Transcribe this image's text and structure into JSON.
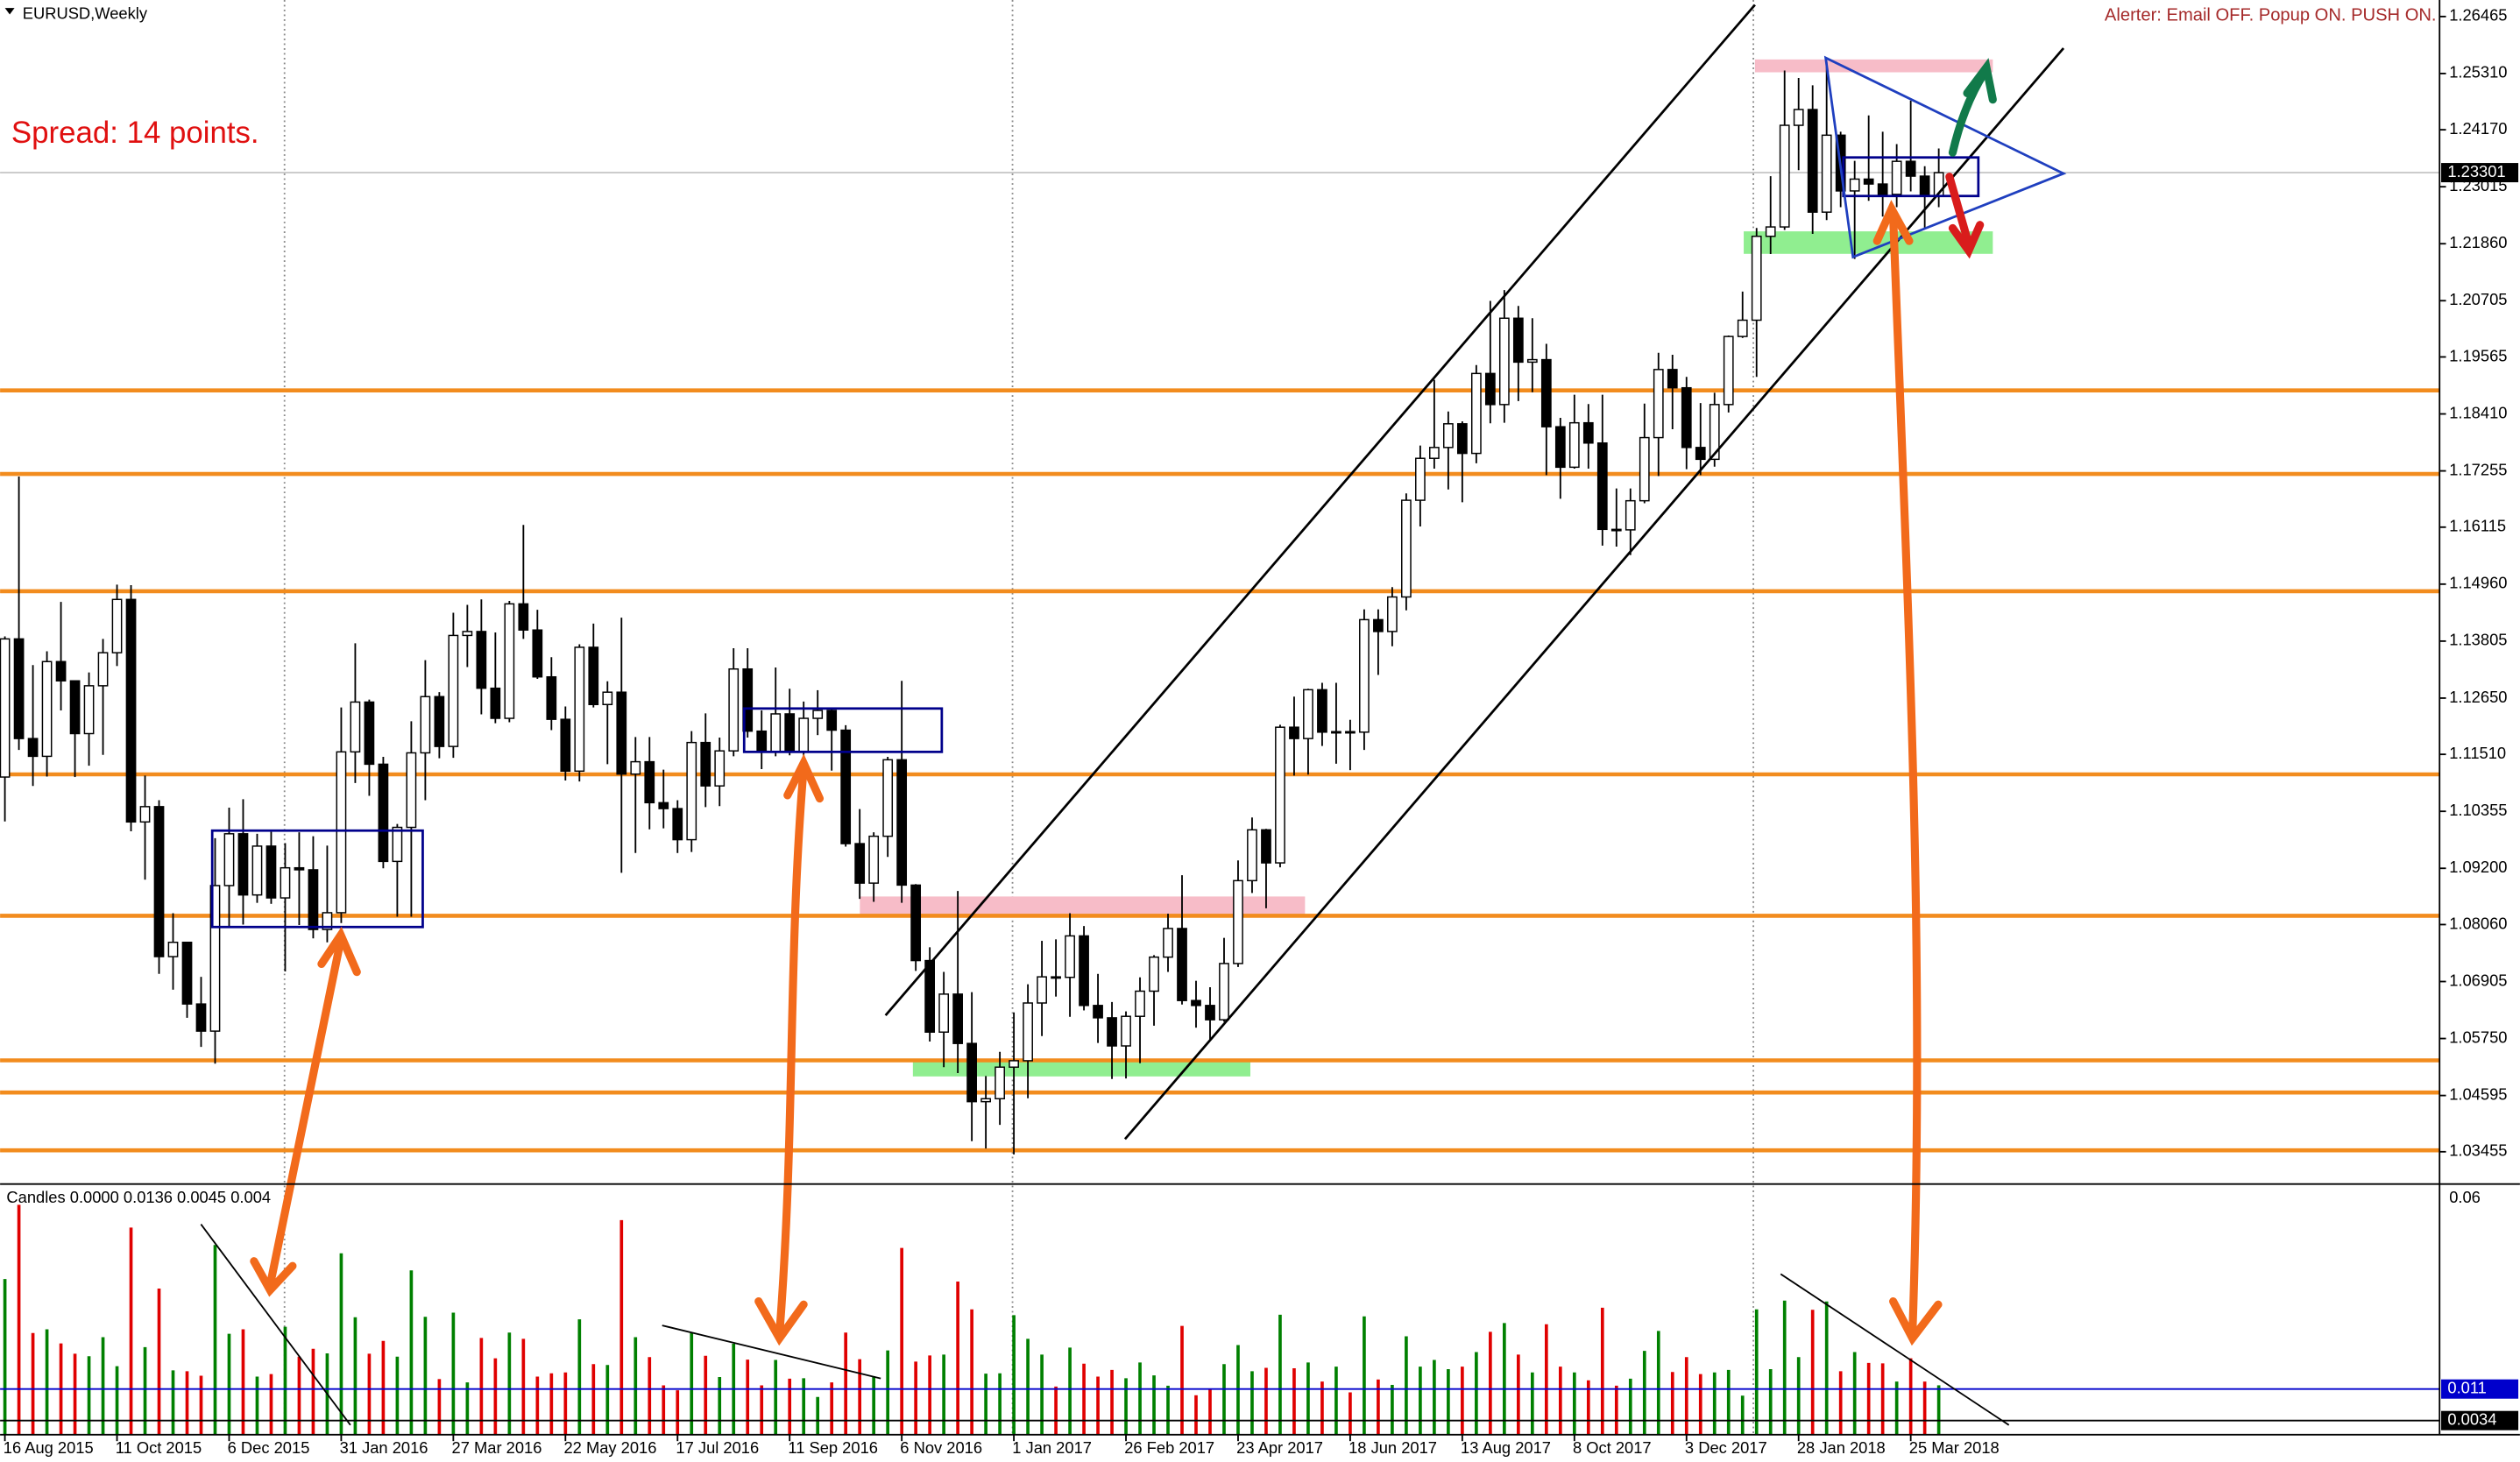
{
  "chart_data": {
    "type": "candlestick",
    "title": "EURUSD,Weekly",
    "alert_text": "Alerter:  Email OFF.  Popup ON.  PUSH ON.",
    "spread_text": "Spread: 14 points.",
    "categories": [
      "16 Aug 2015",
      null,
      null,
      null,
      null,
      null,
      null,
      null,
      "11 Oct 2015",
      null,
      null,
      null,
      null,
      null,
      null,
      null,
      "6 Dec 2015",
      null,
      null,
      null,
      null,
      null,
      null,
      null,
      "31 Jan 2016",
      null,
      null,
      null,
      null,
      null,
      null,
      null,
      "27 Mar 2016",
      null,
      null,
      null,
      null,
      null,
      null,
      null,
      "22 May 2016",
      null,
      null,
      null,
      null,
      null,
      null,
      null,
      "17 Jul 2016",
      null,
      null,
      null,
      null,
      null,
      null,
      null,
      "11 Sep 2016",
      null,
      null,
      null,
      null,
      null,
      null,
      null,
      "6 Nov 2016",
      null,
      null,
      null,
      null,
      null,
      null,
      null,
      "1 Jan 2017",
      null,
      null,
      null,
      null,
      null,
      null,
      null,
      "26 Feb 2017",
      null,
      null,
      null,
      null,
      null,
      null,
      null,
      "23 Apr 2017",
      null,
      null,
      null,
      null,
      null,
      null,
      null,
      "18 Jun 2017",
      null,
      null,
      null,
      null,
      null,
      null,
      null,
      "13 Aug 2017",
      null,
      null,
      null,
      null,
      null,
      null,
      null,
      "8 Oct 2017",
      null,
      null,
      null,
      null,
      null,
      null,
      null,
      "3 Dec 2017",
      null,
      null,
      null,
      null,
      null,
      null,
      null,
      "28 Jan 2018",
      null,
      null,
      null,
      null,
      null,
      null,
      null,
      "25 Mar 2018",
      null,
      null
    ],
    "open": [
      1.1105,
      1.1385,
      1.1183,
      1.1147,
      1.1339,
      1.13,
      1.1193,
      1.129,
      1.1357,
      1.1465,
      1.1014,
      1.1045,
      1.0741,
      1.077,
      1.0645,
      1.059,
      1.0885,
      1.099,
      1.0866,
      1.0965,
      1.086,
      1.0921,
      1.0917,
      1.0796,
      1.083,
      1.1156,
      1.1257,
      1.1131,
      1.0934,
      1.1003,
      1.1154,
      1.1268,
      1.1167,
      1.1392,
      1.14,
      1.1285,
      1.1224,
      1.1456,
      1.1403,
      1.1308,
      1.1222,
      1.1117,
      1.1368,
      1.1252,
      1.1277,
      1.1111,
      1.1136,
      1.1053,
      1.1041,
      1.0978,
      1.1175,
      1.1087,
      1.1158,
      1.1324,
      1.1198,
      1.1156,
      1.1233,
      1.1156,
      1.1224,
      1.124,
      1.12,
      1.097,
      1.089,
      1.0985,
      1.114,
      1.0886,
      1.0733,
      1.0588,
      1.0665,
      1.0565,
      1.0447,
      1.0453,
      1.0517,
      1.053,
      1.0647,
      1.07,
      1.0699,
      1.0783,
      1.0642,
      1.0617,
      1.056,
      1.062,
      1.0671,
      1.074,
      1.0798,
      1.0652,
      1.0642,
      1.0613,
      1.0727,
      1.0895,
      1.0998,
      1.0931,
      1.1206,
      1.1183,
      1.1282,
      1.1196,
      1.1197,
      1.1196,
      1.1424,
      1.14,
      1.147,
      1.1666,
      1.1751,
      1.1773,
      1.1821,
      1.1761,
      1.1923,
      1.186,
      1.2035,
      1.1946,
      1.1951,
      1.1815,
      1.1733,
      1.1823,
      1.1782,
      1.1607,
      1.1606,
      1.1665,
      1.1793,
      1.1931,
      1.1894,
      1.1773,
      1.1749,
      1.186,
      1.1998,
      1.2031,
      1.2201,
      1.222,
      1.2426,
      1.2458,
      1.225,
      1.2406,
      1.2293,
      1.2317,
      1.2307,
      1.2286,
      1.2353,
      1.2323,
      1.2282
    ],
    "high": [
      1.139,
      1.1714,
      1.1332,
      1.136,
      1.146,
      1.13,
      1.1317,
      1.1385,
      1.1495,
      1.1494,
      1.1108,
      1.1058,
      1.0829,
      1.077,
      1.07,
      1.0981,
      1.1043,
      1.106,
      1.099,
      1.0994,
      1.0971,
      1.0993,
      1.0985,
      1.0966,
      1.1246,
      1.1376,
      1.1262,
      1.1146,
      1.101,
      1.1218,
      1.1342,
      1.1277,
      1.1438,
      1.1454,
      1.1465,
      1.1398,
      1.1462,
      1.1616,
      1.1444,
      1.1348,
      1.1248,
      1.1374,
      1.1416,
      1.1299,
      1.1428,
      1.1186,
      1.1186,
      1.112,
      1.1058,
      1.1198,
      1.1234,
      1.1185,
      1.1366,
      1.1366,
      1.124,
      1.1327,
      1.1284,
      1.1258,
      1.1281,
      1.1244,
      1.121,
      1.104,
      1.0993,
      1.1146,
      1.13,
      1.0888,
      1.076,
      1.071,
      1.0874,
      1.0669,
      1.0499,
      1.0548,
      1.0628,
      1.0685,
      1.0773,
      1.0776,
      1.0829,
      1.0803,
      1.0706,
      1.0649,
      1.063,
      1.0699,
      1.0744,
      1.0828,
      1.0906,
      1.0692,
      1.0679,
      1.0779,
      1.0936,
      1.1023,
      1.1,
      1.1211,
      1.1268,
      1.1284,
      1.1296,
      1.1296,
      1.1221,
      1.1445,
      1.1445,
      1.149,
      1.168,
      1.1777,
      1.191,
      1.1846,
      1.1826,
      1.194,
      1.207,
      1.2092,
      1.206,
      1.2035,
      1.1983,
      1.1833,
      1.188,
      1.1861,
      1.188,
      1.169,
      1.169,
      1.1862,
      1.1965,
      1.1961,
      1.1916,
      1.1863,
      1.1884,
      1.2,
      1.2089,
      1.2218,
      1.2323,
      1.2537,
      1.2522,
      1.2507,
      1.2555,
      1.2413,
      1.2354,
      1.2446,
      1.2413,
      1.2388,
      1.2476,
      1.2343,
      1.2379
    ],
    "low": [
      1.1015,
      1.116,
      1.1087,
      1.1106,
      1.124,
      1.1105,
      1.1128,
      1.115,
      1.133,
      1.0995,
      1.0897,
      1.0706,
      1.0674,
      1.0617,
      1.0558,
      1.0524,
      1.08,
      1.0806,
      1.085,
      1.0848,
      1.0711,
      1.0805,
      1.0778,
      1.077,
      1.0809,
      1.1093,
      1.1067,
      1.092,
      1.0822,
      1.0822,
      1.1058,
      1.1143,
      1.1144,
      1.1328,
      1.1232,
      1.1214,
      1.1216,
      1.1385,
      1.1304,
      1.12,
      1.1098,
      1.1096,
      1.1246,
      1.1131,
      1.0911,
      1.0951,
      1.0999,
      1.1001,
      1.0951,
      1.0953,
      1.1044,
      1.1046,
      1.1147,
      1.1185,
      1.1121,
      1.1147,
      1.1149,
      1.1122,
      1.119,
      1.1118,
      1.0964,
      1.0858,
      1.0852,
      1.0943,
      1.085,
      1.0712,
      1.0569,
      1.0517,
      1.0505,
      1.0367,
      1.0352,
      1.04,
      1.034,
      1.0454,
      1.058,
      1.066,
      1.0619,
      1.0632,
      1.0566,
      1.0493,
      1.0494,
      1.0525,
      1.0601,
      1.071,
      1.0644,
      1.0597,
      1.057,
      1.0609,
      1.072,
      1.087,
      1.0839,
      1.0922,
      1.1108,
      1.111,
      1.1168,
      1.1132,
      1.1119,
      1.116,
      1.1312,
      1.137,
      1.1443,
      1.1613,
      1.173,
      1.1688,
      1.1662,
      1.1741,
      1.1822,
      1.1823,
      1.1867,
      1.1885,
      1.1717,
      1.1669,
      1.173,
      1.173,
      1.1574,
      1.1572,
      1.1555,
      1.166,
      1.1715,
      1.181,
      1.1729,
      1.1717,
      1.1734,
      1.1844,
      1.1995,
      1.1916,
      1.2165,
      1.2214,
      1.2335,
      1.2206,
      1.2234,
      1.226,
      1.2155,
      1.2273,
      1.2241,
      1.226,
      1.2292,
      1.2215,
      1.226
    ],
    "close": [
      1.1385,
      1.1183,
      1.1147,
      1.1339,
      1.13,
      1.1193,
      1.129,
      1.1357,
      1.1465,
      1.1014,
      1.1045,
      1.0741,
      1.077,
      1.0645,
      1.059,
      1.0885,
      1.099,
      1.0866,
      1.0965,
      1.086,
      1.0921,
      1.0917,
      1.0796,
      1.083,
      1.1156,
      1.1257,
      1.1131,
      1.0934,
      1.1003,
      1.1154,
      1.1268,
      1.1167,
      1.1392,
      1.14,
      1.1285,
      1.1224,
      1.1456,
      1.1403,
      1.1308,
      1.1222,
      1.1117,
      1.1368,
      1.1252,
      1.1277,
      1.1111,
      1.1136,
      1.1053,
      1.1041,
      1.0978,
      1.1175,
      1.1087,
      1.1158,
      1.1324,
      1.1198,
      1.1156,
      1.1233,
      1.1156,
      1.1224,
      1.124,
      1.12,
      1.097,
      1.089,
      1.0985,
      1.114,
      1.0886,
      1.0733,
      1.0588,
      1.0665,
      1.0565,
      1.0447,
      1.0453,
      1.0517,
      1.053,
      1.0647,
      1.07,
      1.0699,
      1.0783,
      1.0642,
      1.0617,
      1.056,
      1.062,
      1.0671,
      1.074,
      1.0798,
      1.0652,
      1.0642,
      1.0613,
      1.0727,
      1.0895,
      1.0998,
      1.0931,
      1.1206,
      1.1183,
      1.1282,
      1.1196,
      1.1197,
      1.1196,
      1.1424,
      1.14,
      1.147,
      1.1666,
      1.1751,
      1.1773,
      1.1821,
      1.1761,
      1.1923,
      1.186,
      1.2035,
      1.1946,
      1.1951,
      1.1815,
      1.1733,
      1.1823,
      1.1782,
      1.1607,
      1.1606,
      1.1665,
      1.1793,
      1.1931,
      1.1894,
      1.1773,
      1.1749,
      1.186,
      1.1998,
      1.2031,
      1.2201,
      1.222,
      1.2426,
      1.2458,
      1.225,
      1.2406,
      1.2293,
      1.2317,
      1.2307,
      1.2286,
      1.2353,
      1.2323,
      1.2282,
      1.233
    ],
    "up_color": "#ffffff",
    "down_color": "#000000",
    "ylim": [
      1.028,
      1.268
    ],
    "yticks": [
      1.26465,
      {
        "value": 1.2531,
        "label": "1.25310"
      },
      {
        "value": 1.2417,
        "label": "1.24170"
      },
      1.23015,
      {
        "value": 1.2186,
        "label": "1.21860"
      },
      1.20705,
      1.19565,
      {
        "value": 1.1841,
        "label": "1.18410"
      },
      1.17255,
      1.16115,
      {
        "value": 1.1496,
        "label": "1.14960"
      },
      1.13805,
      {
        "value": 1.1265,
        "label": "1.12650"
      },
      {
        "value": 1.1151,
        "label": "1.11510"
      },
      1.10355,
      {
        "value": 1.092,
        "label": "1.09200"
      },
      {
        "value": 1.0806,
        "label": "1.08060"
      },
      1.06905,
      {
        "value": 1.0575,
        "label": "1.05750"
      },
      1.04595,
      1.03455
    ],
    "last_price": 1.23301,
    "indicator": {
      "type": "histogram",
      "label": "Candles 0.0000 0.0136 0.0045 0.004",
      "ylim": [
        0,
        0.06
      ],
      "yticks": [
        0.06
      ],
      "up_color": "#008000",
      "down_color": "#e00000",
      "levels": [
        {
          "value": 0.011,
          "color": "#0000cc"
        },
        {
          "value": 0.0034,
          "color": "#000000"
        }
      ]
    }
  }
}
